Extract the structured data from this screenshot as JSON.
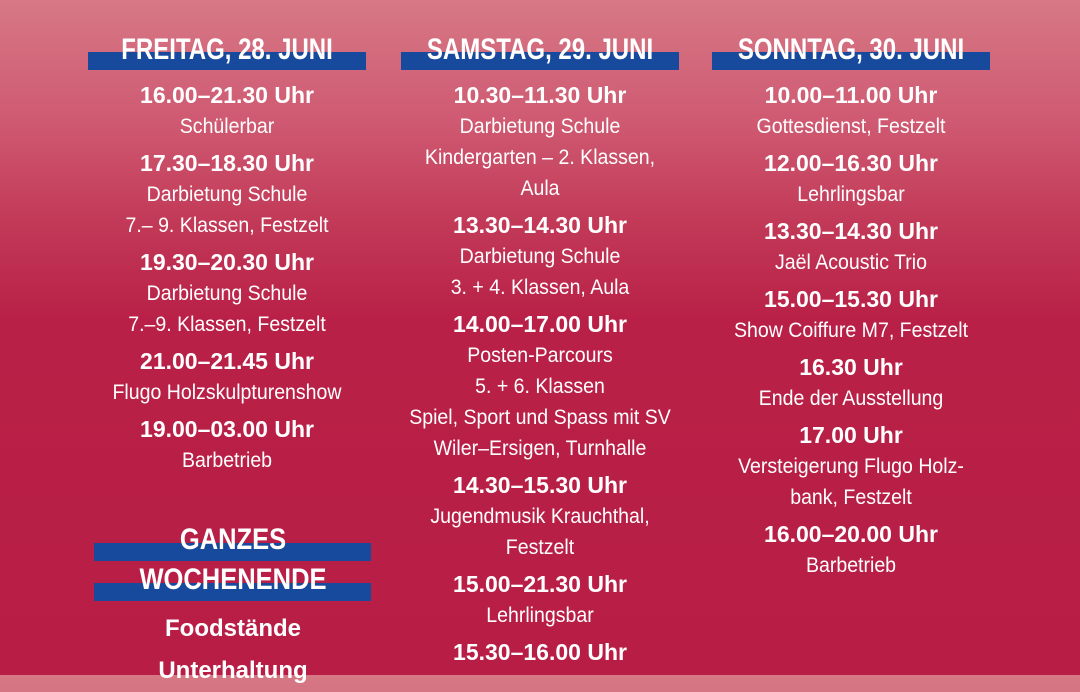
{
  "colors": {
    "background": "#b81e45",
    "background_top": "#d67885",
    "bar": "#174a9c",
    "text": "#ffffff"
  },
  "columns": [
    {
      "header": "FREITAG, 28. JUNI",
      "entries": [
        {
          "time": "16.00–21.30 Uhr",
          "lines": [
            "Schülerbar"
          ]
        },
        {
          "time": "17.30–18.30 Uhr",
          "lines": [
            "Darbietung Schule",
            "7.– 9. Klassen, Festzelt"
          ]
        },
        {
          "time": "19.30–20.30 Uhr",
          "lines": [
            "Darbietung Schule",
            "7.–9. Klassen, Festzelt"
          ]
        },
        {
          "time": "21.00–21.45 Uhr",
          "lines": [
            "Flugo Holzskulpturenshow"
          ]
        },
        {
          "time": "19.00–03.00 Uhr",
          "lines": [
            "Barbetrieb"
          ]
        }
      ]
    },
    {
      "header": "SAMSTAG, 29. JUNI",
      "entries": [
        {
          "time": "10.30–11.30 Uhr",
          "lines": [
            "Darbietung Schule",
            "Kindergarten – 2. Klassen,",
            "Aula"
          ]
        },
        {
          "time": "13.30–14.30 Uhr",
          "lines": [
            "Darbietung Schule",
            "3. + 4. Klassen, Aula"
          ]
        },
        {
          "time": "14.00–17.00 Uhr",
          "lines": [
            "Posten-Parcours",
            "5. + 6. Klassen",
            "Spiel, Sport und Spass mit SV",
            "Wiler–Ersigen, Turnhalle"
          ]
        },
        {
          "time": "14.30–15.30 Uhr",
          "lines": [
            "Jugendmusik Krauchthal,",
            "Festzelt"
          ]
        },
        {
          "time": "15.00–21.30 Uhr",
          "lines": [
            "Lehrlingsbar"
          ]
        },
        {
          "time": "15.30–16.00 Uhr",
          "lines": []
        }
      ]
    },
    {
      "header": "SONNTAG, 30. JUNI",
      "entries": [
        {
          "time": "10.00–11.00 Uhr",
          "lines": [
            "Gottesdienst, Festzelt"
          ]
        },
        {
          "time": "12.00–16.30 Uhr",
          "lines": [
            "Lehrlingsbar"
          ]
        },
        {
          "time": "13.30–14.30 Uhr",
          "lines": [
            "Jaël Acoustic Trio"
          ]
        },
        {
          "time": "15.00–15.30 Uhr",
          "lines": [
            "Show Coiffure M7, Festzelt"
          ]
        },
        {
          "time": "16.30 Uhr",
          "lines": [
            "Ende der Ausstellung"
          ]
        },
        {
          "time": "17.00 Uhr",
          "lines": [
            "Versteigerung Flugo Holz-",
            "bank, Festzelt"
          ]
        },
        {
          "time": "16.00–20.00 Uhr",
          "lines": [
            "Barbetrieb"
          ]
        }
      ]
    }
  ],
  "weekend": {
    "header_lines": [
      "GANZES",
      "WOCHENENDE"
    ],
    "items": [
      "Foodstände",
      "Unterhaltung"
    ]
  }
}
